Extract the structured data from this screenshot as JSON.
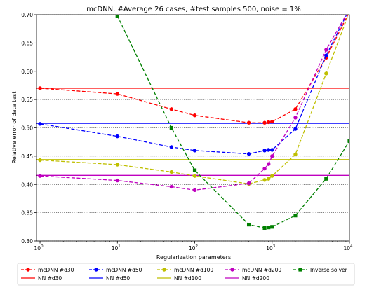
{
  "chart_data": {
    "type": "line",
    "title": "mcDNN, #Average 26 cases,  #test samples 500, noise = 1%",
    "xlabel": "Regularization parameters",
    "ylabel": "Relative error of data test",
    "xscale": "log",
    "xlim": [
      0.9,
      10000
    ],
    "ylim": [
      0.3,
      0.7
    ],
    "grid": "horizontal dotted",
    "legend_position": "bottom",
    "x_ticks": [
      {
        "value": 1,
        "base": "10",
        "exp": "0"
      },
      {
        "value": 10,
        "base": "10",
        "exp": "1"
      },
      {
        "value": 100,
        "base": "10",
        "exp": "2"
      },
      {
        "value": 1000,
        "base": "10",
        "exp": "3"
      },
      {
        "value": 10000,
        "base": "10",
        "exp": "4"
      }
    ],
    "y_ticks": [
      {
        "value": 0.3,
        "label": "0.30"
      },
      {
        "value": 0.35,
        "label": "0.35"
      },
      {
        "value": 0.4,
        "label": "0.40"
      },
      {
        "value": 0.45,
        "label": "0.45"
      },
      {
        "value": 0.5,
        "label": "0.50"
      },
      {
        "value": 0.55,
        "label": "0.55"
      },
      {
        "value": 0.6,
        "label": "0.60"
      },
      {
        "value": 0.65,
        "label": "0.65"
      },
      {
        "value": 0.7,
        "label": "0.70"
      }
    ],
    "series": [
      {
        "name": "mcDNN #d30",
        "key": "mcdnn-d30",
        "color": "#ff0000",
        "marker": "circle",
        "x": [
          1,
          10,
          50,
          100,
          500,
          800,
          900,
          1000,
          2000,
          5000,
          10000
        ],
        "y": [
          0.57,
          0.56,
          0.533,
          0.522,
          0.509,
          0.509,
          0.51,
          0.511,
          0.533,
          0.624,
          0.705
        ]
      },
      {
        "name": "mcDNN #d50",
        "key": "mcdnn-d50",
        "color": "#0000ff",
        "marker": "circle",
        "x": [
          1,
          10,
          50,
          100,
          500,
          800,
          900,
          1000,
          2000,
          5000,
          10000
        ],
        "y": [
          0.507,
          0.485,
          0.466,
          0.46,
          0.454,
          0.46,
          0.461,
          0.461,
          0.498,
          0.628,
          0.71
        ]
      },
      {
        "name": "mcDNN #d100",
        "key": "mcdnn-d100",
        "color": "#bfbf00",
        "marker": "circle",
        "x": [
          1,
          10,
          50,
          100,
          500,
          800,
          900,
          1000,
          2000,
          5000,
          10000
        ],
        "y": [
          0.443,
          0.435,
          0.422,
          0.415,
          0.401,
          0.408,
          0.41,
          0.415,
          0.453,
          0.596,
          0.705
        ]
      },
      {
        "name": "mcDNN #d200",
        "key": "mcdnn-d200",
        "color": "#bf00bf",
        "marker": "circle",
        "x": [
          1,
          10,
          50,
          100,
          500,
          800,
          900,
          1000,
          2000,
          5000,
          10000
        ],
        "y": [
          0.415,
          0.407,
          0.396,
          0.39,
          0.402,
          0.428,
          0.436,
          0.45,
          0.518,
          0.638,
          0.71
        ]
      },
      {
        "name": "Inverse solver",
        "key": "inverse-solver",
        "color": "#008000",
        "marker": "square",
        "x": [
          10,
          50,
          100,
          500,
          800,
          900,
          1000,
          2000,
          5000,
          10000
        ],
        "y": [
          0.698,
          0.5,
          0.425,
          0.329,
          0.323,
          0.324,
          0.325,
          0.345,
          0.41,
          0.477
        ]
      }
    ],
    "reference_lines": [
      {
        "name": "NN #d30",
        "key": "nn-d30",
        "color": "#ff0000",
        "y": 0.57
      },
      {
        "name": "NN #d50",
        "key": "nn-d50",
        "color": "#0000ff",
        "y": 0.508
      },
      {
        "name": "NN #d100",
        "key": "nn-d100",
        "color": "#bfbf00",
        "y": 0.444
      },
      {
        "name": "NN #d200",
        "key": "nn-d200",
        "color": "#bf00bf",
        "y": 0.416
      }
    ],
    "legend": [
      {
        "label": "mcDNN #d30",
        "series": "mcdnn-d30"
      },
      {
        "label": "mcDNN #d50",
        "series": "mcdnn-d50"
      },
      {
        "label": "mcDNN #d100",
        "series": "mcdnn-d100"
      },
      {
        "label": "mcDNN #d200",
        "series": "mcdnn-d200"
      },
      {
        "label": "Inverse solver",
        "series": "inverse-solver"
      },
      {
        "label": "NN #d30",
        "series": "nn-d30"
      },
      {
        "label": "NN #d50",
        "series": "nn-d50"
      },
      {
        "label": "NN #d100",
        "series": "nn-d100"
      },
      {
        "label": "NN #d200",
        "series": "nn-d200"
      }
    ]
  }
}
